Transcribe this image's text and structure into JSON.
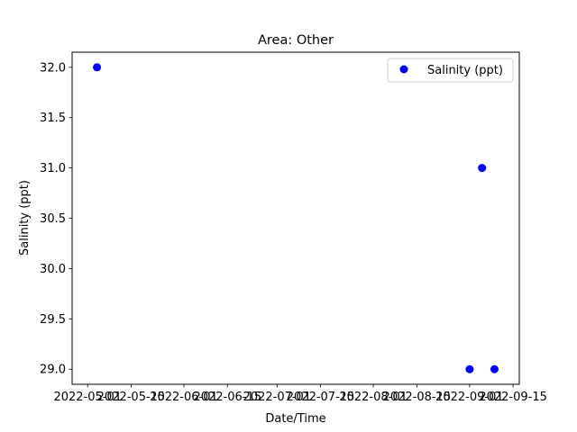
{
  "chart_data": {
    "type": "scatter",
    "title": "Area: Other",
    "xlabel": "Date/Time",
    "ylabel": "Salinity (ppt)",
    "x_tick_labels": [
      "2022-05-01",
      "2022-05-15",
      "2022-06-01",
      "2022-06-15",
      "2022-07-01",
      "2022-07-15",
      "2022-08-01",
      "2022-08-15",
      "2022-09-01",
      "2022-09-15"
    ],
    "x_ticks": [
      "2022-05-01",
      "2022-05-15",
      "2022-06-01",
      "2022-06-15",
      "2022-07-01",
      "2022-07-15",
      "2022-08-01",
      "2022-08-15",
      "2022-09-01",
      "2022-09-15"
    ],
    "xlim": [
      "2022-04-26",
      "2022-09-17"
    ],
    "y_tick_labels": [
      "29.0",
      "29.5",
      "30.0",
      "30.5",
      "31.0",
      "31.5",
      "32.0"
    ],
    "y_ticks": [
      29.0,
      29.5,
      30.0,
      30.5,
      31.0,
      31.5,
      32.0
    ],
    "ylim": [
      28.85,
      32.15
    ],
    "legend_position": "top-right",
    "grid": false,
    "series": [
      {
        "name": "Salinity (ppt)",
        "color": "#0000ff",
        "marker": "circle",
        "points": [
          {
            "x": "2022-05-04",
            "y": 32.0
          },
          {
            "x": "2022-09-01",
            "y": 29.0
          },
          {
            "x": "2022-09-05",
            "y": 31.0
          },
          {
            "x": "2022-09-09",
            "y": 29.0
          }
        ]
      }
    ]
  }
}
